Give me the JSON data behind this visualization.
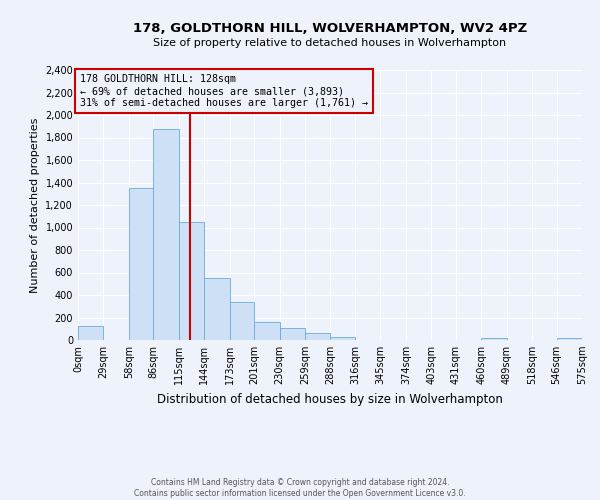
{
  "title": "178, GOLDTHORN HILL, WOLVERHAMPTON, WV2 4PZ",
  "subtitle": "Size of property relative to detached houses in Wolverhampton",
  "xlabel": "Distribution of detached houses by size in Wolverhampton",
  "ylabel": "Number of detached properties",
  "bin_edges": [
    0,
    29,
    58,
    86,
    115,
    144,
    173,
    201,
    230,
    259,
    288,
    316,
    345,
    374,
    403,
    431,
    460,
    489,
    518,
    546,
    575
  ],
  "bin_counts": [
    125,
    0,
    1350,
    1880,
    1050,
    550,
    340,
    160,
    110,
    60,
    30,
    0,
    0,
    0,
    0,
    0,
    15,
    0,
    0,
    20
  ],
  "bar_facecolor": "#cde0f5",
  "bar_edgecolor": "#6aaad8",
  "vline_x": 128,
  "vline_color": "#cc0000",
  "annotation_title": "178 GOLDTHORN HILL: 128sqm",
  "annotation_line1": "← 69% of detached houses are smaller (3,893)",
  "annotation_line2": "31% of semi-detached houses are larger (1,761) →",
  "annotation_box_color": "#cc0000",
  "ylim": [
    0,
    2400
  ],
  "yticks": [
    0,
    200,
    400,
    600,
    800,
    1000,
    1200,
    1400,
    1600,
    1800,
    2000,
    2200,
    2400
  ],
  "xtick_labels": [
    "0sqm",
    "29sqm",
    "58sqm",
    "86sqm",
    "115sqm",
    "144sqm",
    "173sqm",
    "201sqm",
    "230sqm",
    "259sqm",
    "288sqm",
    "316sqm",
    "345sqm",
    "374sqm",
    "403sqm",
    "431sqm",
    "460sqm",
    "489sqm",
    "518sqm",
    "546sqm",
    "575sqm"
  ],
  "background_color": "#eef2fa",
  "grid_color": "#ffffff",
  "footer_line1": "Contains HM Land Registry data © Crown copyright and database right 2024.",
  "footer_line2": "Contains public sector information licensed under the Open Government Licence v3.0."
}
